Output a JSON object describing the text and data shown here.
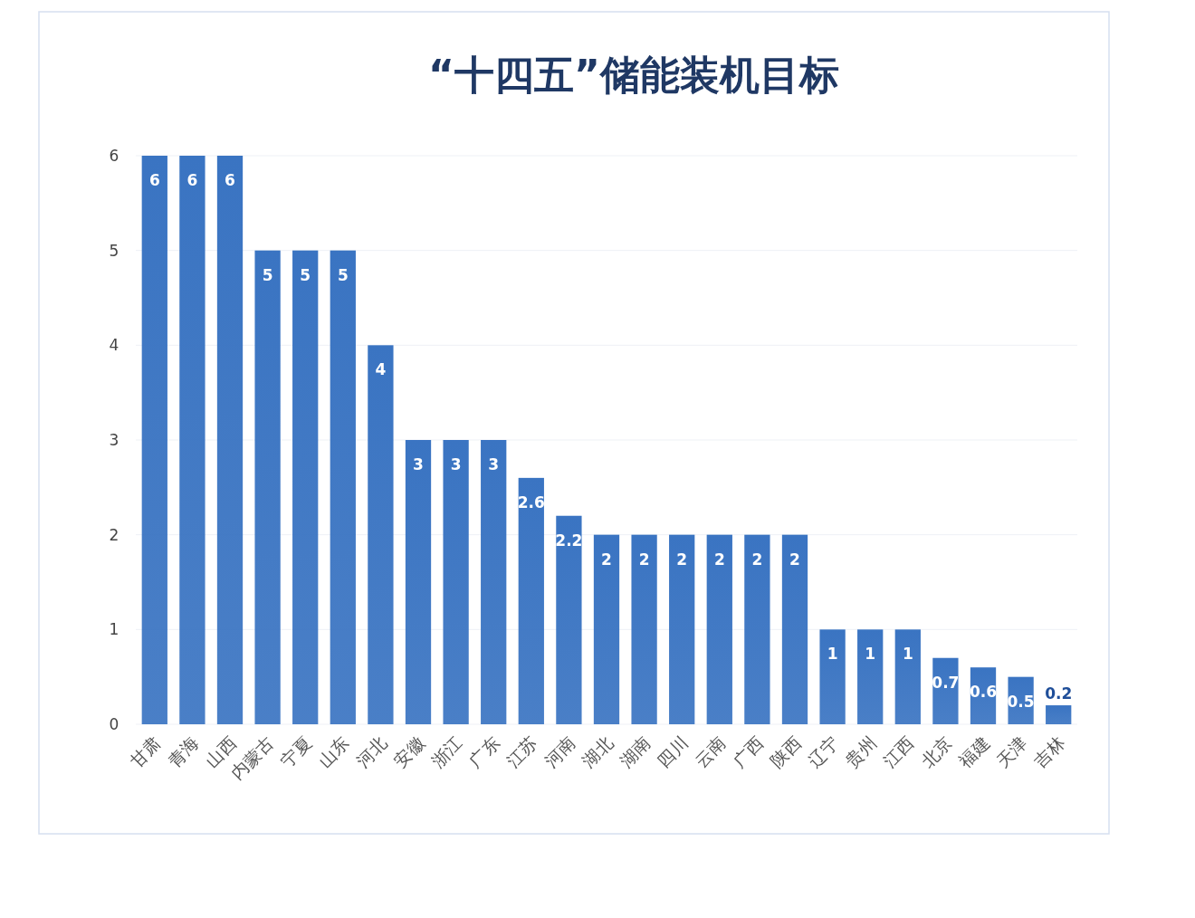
{
  "chart_data": {
    "type": "bar",
    "title": "“十四五”储能装机目标",
    "categories": [
      "甘肃",
      "青海",
      "山西",
      "内蒙古",
      "宁夏",
      "山东",
      "河北",
      "安徽",
      "浙江",
      "广东",
      "江苏",
      "河南",
      "湖北",
      "湖南",
      "四川",
      "云南",
      "广西",
      "陕西",
      "辽宁",
      "贵州",
      "江西",
      "北京",
      "福建",
      "天津",
      "吉林"
    ],
    "values": [
      6,
      6,
      6,
      5,
      5,
      5,
      4,
      3,
      3,
      3,
      2.6,
      2.2,
      2,
      2,
      2,
      2,
      2,
      2,
      1,
      1,
      1,
      0.7,
      0.6,
      0.5,
      0.2
    ],
    "color": "#3a74c2",
    "ylim": [
      0,
      6
    ],
    "yticks": [
      0,
      1,
      2,
      3,
      4,
      5,
      6
    ],
    "grid": "y",
    "data_labels": true
  }
}
